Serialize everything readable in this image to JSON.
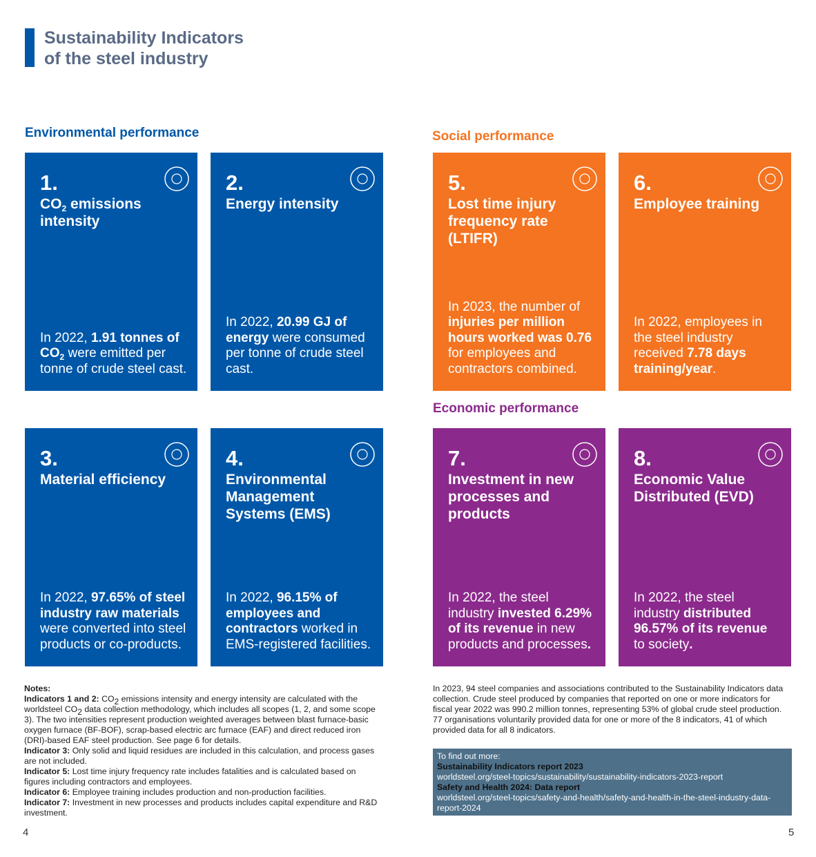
{
  "header": {
    "title": [
      "Sustainability Indicators",
      "of the steel industry"
    ]
  },
  "sections": {
    "environmental": "Environmental performance",
    "social": "Social performance",
    "economic": "Economic performance"
  },
  "cards": [
    {
      "number": "1.",
      "title": [
        "CO",
        "2",
        " emissions intensity"
      ],
      "body": [
        "In 2022, ",
        "1.91 tonnes of CO",
        "2",
        " were emitted per tonne of crude steel cast."
      ]
    },
    {
      "number": "2.",
      "title": [
        "Energy intensity"
      ],
      "body": [
        "In 2022, ",
        "20.99 GJ of energy",
        " were consumed per tonne of crude steel cast."
      ]
    },
    {
      "number": "3.",
      "title": [
        "Material efficiency"
      ],
      "body": [
        "In 2022, ",
        "97.65% of steel industry raw materials",
        " were converted into steel products or co-products."
      ]
    },
    {
      "number": "4.",
      "title": [
        "Environmental Management Systems (EMS)"
      ],
      "body": [
        "In 2022, ",
        "96.15% of employees and contractors",
        " worked in EMS-registered facilities."
      ]
    },
    {
      "number": "5.",
      "title": [
        "Lost time injury frequency rate (LTIFR)"
      ],
      "body": [
        "In 2023, the number of ",
        "injuries per million hours worked was 0.76",
        " for employees and contractors combined."
      ]
    },
    {
      "number": "6.",
      "title": [
        "Employee training"
      ],
      "body": [
        "In 2022, employees in the steel industry received ",
        "7.78 days training/year",
        "."
      ]
    },
    {
      "number": "7.",
      "title": [
        "Investment in new processes and products"
      ],
      "body": [
        "In 2022, the steel industry ",
        "invested 6.29% of its revenue",
        " in new products and processes",
        "."
      ]
    },
    {
      "number": "8.",
      "title": [
        "Economic Value Distributed (EVD)"
      ],
      "body": [
        "In 2022, the steel industry ",
        "distributed 96.57% of its revenue",
        " to society",
        "."
      ]
    }
  ],
  "notes": {
    "heading": "Notes:",
    "items": [
      [
        "Indicators 1 and 2:",
        " CO",
        "2",
        " emissions intensity and energy intensity are calculated with the worldsteel CO",
        "2",
        " data collection methodology, which includes all scopes (1, 2, and some scope 3). The two intensities represent production weighted averages between blast furnace-basic oxygen furnace (BF-BOF), scrap-based electric arc furnace (EAF) and direct reduced iron (DRI)-based EAF steel production. See page 6 for details."
      ],
      [
        "Indicator 3:",
        " Only solid and liquid residues are included in this calculation, and process gases are not included."
      ],
      [
        "Indicator 5:",
        " Lost time injury frequency rate includes fatalities and is calculated based on figures including contractors and employees."
      ],
      [
        "Indicator 6:",
        " Employee training includes production and non-production facilities."
      ],
      [
        "Indicator 7:",
        " Investment in new processes and products includes capital expenditure and R&D investment."
      ]
    ]
  },
  "about": "In 2023, 94 steel companies and associations contributed to the Sustainability Indicators data collection. Crude steel produced by companies that reported on one or more indicators for fiscal year 2022 was 990.2 million tonnes, representing 53% of global crude steel production. 77 organisations voluntarily provided data for one or more of the 8 indicators, 41 of which provided data for all 8 indicators.",
  "find_out": {
    "heading": "To find out more:",
    "links": [
      {
        "title": "Sustainability Indicators report 2023",
        "url": "worldsteel.org/steel-topics/sustainability/sustainability-indicators-2023-report"
      },
      {
        "title": "Safety and Health 2024: Data report",
        "url": "worldsteel.org/steel-topics/safety-and-health/safety-and-health-in-the-steel-industry-data-report-2024"
      }
    ]
  },
  "page_numbers": [
    "4",
    "5"
  ]
}
